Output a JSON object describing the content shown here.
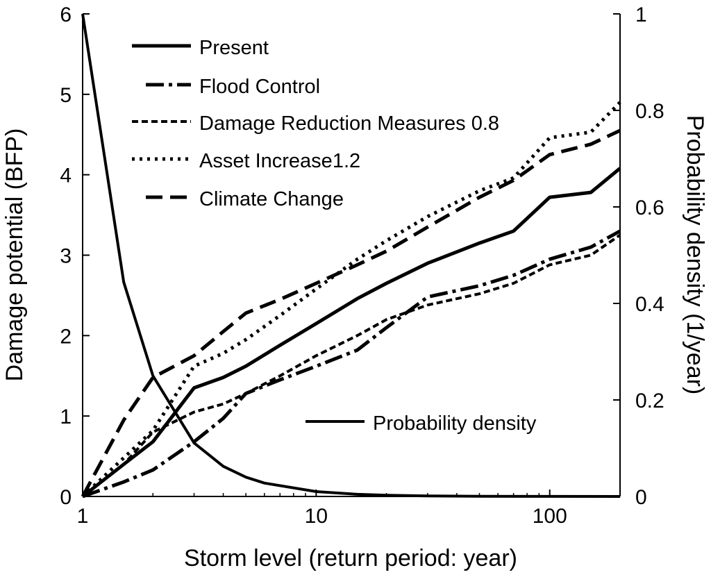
{
  "chart_data": {
    "type": "line",
    "xlabel": "Storm level (return period: year)",
    "ylabel_left": "Damage potential (BFP)",
    "ylabel_right": "Probability density (1/year)",
    "x_scale": "log",
    "xlim": [
      1,
      200
    ],
    "ylim_left": [
      0,
      6
    ],
    "ylim_right": [
      0,
      1
    ],
    "x_ticks": [
      1,
      10,
      100
    ],
    "x_tick_labels": [
      "1",
      "10",
      "100"
    ],
    "y_left_ticks": [
      0,
      1,
      2,
      3,
      4,
      5,
      6
    ],
    "y_left_tick_labels": [
      "0",
      "1",
      "2",
      "3",
      "4",
      "5",
      "6"
    ],
    "y_right_ticks": [
      0,
      0.2,
      0.4,
      0.6,
      0.8,
      1
    ],
    "y_right_tick_labels": [
      "0",
      "0.2",
      "0.4",
      "0.6",
      "0.8",
      "1"
    ],
    "legend_position": "top-left",
    "series": [
      {
        "name": "Present",
        "axis": "left",
        "dash": "solid",
        "x": [
          1,
          1.5,
          2,
          3,
          4,
          5,
          7,
          10,
          15,
          20,
          30,
          50,
          70,
          100,
          150,
          200
        ],
        "values": [
          0,
          0.4,
          0.68,
          1.35,
          1.48,
          1.62,
          1.88,
          2.15,
          2.46,
          2.65,
          2.9,
          3.15,
          3.3,
          3.72,
          3.78,
          4.08
        ]
      },
      {
        "name": "Flood Control",
        "axis": "left",
        "dash": "dashdot",
        "x": [
          1,
          1.5,
          2,
          3,
          4,
          5,
          7,
          10,
          15,
          20,
          30,
          50,
          70,
          100,
          150,
          200
        ],
        "values": [
          0,
          0.18,
          0.33,
          0.68,
          0.97,
          1.28,
          1.45,
          1.62,
          1.82,
          2.1,
          2.48,
          2.62,
          2.75,
          2.95,
          3.1,
          3.3
        ]
      },
      {
        "name": "Damage Reduction Measures 0.8",
        "axis": "left",
        "dash": "shortdash",
        "x": [
          1,
          1.5,
          2,
          3,
          4,
          5,
          7,
          10,
          15,
          20,
          30,
          50,
          70,
          100,
          150,
          200
        ],
        "values": [
          0,
          0.4,
          0.8,
          1.05,
          1.15,
          1.28,
          1.5,
          1.75,
          2.0,
          2.2,
          2.38,
          2.52,
          2.65,
          2.88,
          3.0,
          3.25
        ]
      },
      {
        "name": "Asset Increase1.2",
        "axis": "left",
        "dash": "dot",
        "x": [
          1,
          1.5,
          2,
          3,
          4,
          5,
          7,
          10,
          15,
          20,
          30,
          50,
          70,
          100,
          150,
          200
        ],
        "values": [
          0,
          0.48,
          0.82,
          1.62,
          1.78,
          1.95,
          2.25,
          2.58,
          2.95,
          3.18,
          3.48,
          3.8,
          3.96,
          4.46,
          4.53,
          4.9
        ]
      },
      {
        "name": "Climate Change",
        "axis": "left",
        "dash": "longdash",
        "x": [
          1,
          1.5,
          2,
          3,
          4,
          5,
          7,
          10,
          15,
          20,
          30,
          50,
          70,
          100,
          150,
          200
        ],
        "values": [
          0,
          0.95,
          1.48,
          1.75,
          2.05,
          2.28,
          2.45,
          2.65,
          2.88,
          3.05,
          3.35,
          3.72,
          3.93,
          4.25,
          4.38,
          4.55
        ]
      },
      {
        "name": "Probability density",
        "axis": "right",
        "dash": "solid",
        "x": [
          1,
          1.5,
          2,
          3,
          4,
          5,
          6,
          10,
          15,
          20,
          30,
          50,
          100,
          200
        ],
        "values": [
          1.0,
          0.444,
          0.25,
          0.111,
          0.0625,
          0.04,
          0.0278,
          0.01,
          0.0044,
          0.0025,
          0.0011,
          0.0004,
          0.0001,
          0.0
        ]
      }
    ]
  }
}
